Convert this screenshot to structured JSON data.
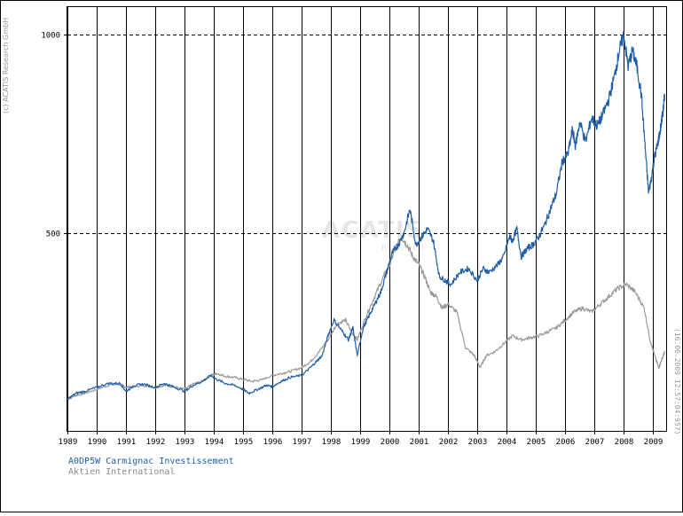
{
  "copyright": "(c) ACATIS Research GmbH",
  "timestamp": "(16.06.2009 12:57:04:957)",
  "watermark": "ACATIS",
  "watermark_sub": "RESEARCH",
  "colors": {
    "fund": "#1f5fa8",
    "index": "#9a9a9a",
    "grid": "#000000"
  },
  "chart_data": {
    "type": "line",
    "title": "",
    "xlabel": "",
    "ylabel": "",
    "xlim": [
      1989.0,
      2009.45
    ],
    "ylim": [
      0,
      1070
    ],
    "ytick_labels": [
      "1000",
      "500"
    ],
    "ytick_values": [
      1000,
      500
    ],
    "xtick_labels": [
      "1989",
      "1990",
      "1991",
      "1992",
      "1993",
      "1994",
      "1995",
      "1996",
      "1997",
      "1998",
      "1999",
      "2000",
      "2001",
      "2002",
      "2003",
      "2004",
      "2005",
      "2006",
      "2007",
      "2008",
      "2009"
    ],
    "xtick_values": [
      1989,
      1990,
      1991,
      1992,
      1993,
      1994,
      1995,
      1996,
      1997,
      1998,
      1999,
      2000,
      2001,
      2002,
      2003,
      2004,
      2005,
      2006,
      2007,
      2008,
      2009
    ],
    "series": [
      {
        "name": "A0DP5W Carmignac Investissement",
        "color": "#1f5fa8",
        "x": [
          1989.0,
          1989.3,
          1989.6,
          1990.0,
          1990.4,
          1990.8,
          1991.0,
          1991.3,
          1991.6,
          1992.0,
          1992.3,
          1992.6,
          1993.0,
          1993.3,
          1993.6,
          1993.9,
          1994.1,
          1994.4,
          1994.7,
          1995.0,
          1995.2,
          1995.5,
          1995.8,
          1996.0,
          1996.3,
          1996.6,
          1997.0,
          1997.3,
          1997.5,
          1997.7,
          1997.9,
          1998.1,
          1998.4,
          1998.6,
          1998.75,
          1998.9,
          1999.1,
          1999.3,
          1999.5,
          1999.7,
          1999.9,
          2000.1,
          2000.3,
          2000.5,
          2000.7,
          2000.9,
          2001.1,
          2001.3,
          2001.5,
          2001.7,
          2001.9,
          2002.1,
          2002.4,
          2002.7,
          2003.0,
          2003.2,
          2003.4,
          2003.7,
          2003.9,
          2004.1,
          2004.2,
          2004.35,
          2004.5,
          2004.7,
          2004.9,
          2005.1,
          2005.3,
          2005.5,
          2005.7,
          2005.9,
          2006.1,
          2006.25,
          2006.35,
          2006.5,
          2006.7,
          2006.9,
          2007.1,
          2007.3,
          2007.5,
          2007.7,
          2007.85,
          2008.0,
          2008.15,
          2008.3,
          2008.45,
          2008.6,
          2008.75,
          2008.85,
          2008.95,
          2009.05,
          2009.15,
          2009.25,
          2009.35,
          2009.4
        ],
        "values": [
          80,
          95,
          100,
          110,
          120,
          120,
          100,
          115,
          118,
          110,
          120,
          112,
          100,
          115,
          125,
          140,
          130,
          120,
          115,
          105,
          95,
          105,
          115,
          112,
          125,
          135,
          140,
          160,
          175,
          190,
          240,
          280,
          250,
          230,
          260,
          190,
          260,
          290,
          320,
          350,
          400,
          450,
          470,
          500,
          560,
          470,
          490,
          510,
          480,
          390,
          380,
          370,
          400,
          410,
          380,
          410,
          400,
          420,
          440,
          490,
          480,
          510,
          440,
          460,
          470,
          490,
          520,
          560,
          600,
          680,
          700,
          760,
          720,
          780,
          730,
          790,
          770,
          800,
          840,
          900,
          960,
          1000,
          920,
          960,
          920,
          850,
          700,
          600,
          640,
          690,
          720,
          760,
          810,
          850
        ]
      },
      {
        "name": "Aktien International",
        "color": "#9a9a9a",
        "x": [
          1989.0,
          1989.3,
          1989.6,
          1990.0,
          1990.4,
          1990.8,
          1991.0,
          1991.3,
          1991.6,
          1992.0,
          1992.3,
          1992.6,
          1993.0,
          1993.3,
          1993.6,
          1993.9,
          1994.1,
          1994.4,
          1994.7,
          1995.0,
          1995.3,
          1995.6,
          1996.0,
          1996.3,
          1996.6,
          1997.0,
          1997.3,
          1997.6,
          1997.9,
          1998.2,
          1998.5,
          1998.7,
          1998.9,
          1999.2,
          1999.5,
          1999.8,
          2000.0,
          2000.2,
          2000.4,
          2000.6,
          2000.8,
          2001.0,
          2001.2,
          2001.4,
          2001.6,
          2001.8,
          2002.0,
          2002.3,
          2002.6,
          2002.9,
          2003.1,
          2003.3,
          2003.6,
          2003.9,
          2004.2,
          2004.5,
          2004.8,
          2005.1,
          2005.4,
          2005.7,
          2006.0,
          2006.3,
          2006.6,
          2006.9,
          2007.2,
          2007.5,
          2007.8,
          2008.1,
          2008.4,
          2008.7,
          2008.9,
          2009.1,
          2009.2,
          2009.3,
          2009.4
        ],
        "values": [
          80,
          90,
          95,
          105,
          115,
          118,
          110,
          112,
          115,
          110,
          115,
          112,
          105,
          118,
          125,
          140,
          145,
          138,
          135,
          130,
          125,
          128,
          140,
          145,
          150,
          160,
          175,
          200,
          230,
          270,
          280,
          250,
          230,
          290,
          340,
          390,
          420,
          460,
          490,
          470,
          440,
          420,
          390,
          350,
          340,
          310,
          320,
          300,
          210,
          190,
          160,
          190,
          200,
          220,
          240,
          230,
          235,
          240,
          250,
          260,
          280,
          300,
          310,
          300,
          320,
          340,
          360,
          370,
          350,
          310,
          230,
          180,
          160,
          180,
          200
        ]
      }
    ]
  }
}
